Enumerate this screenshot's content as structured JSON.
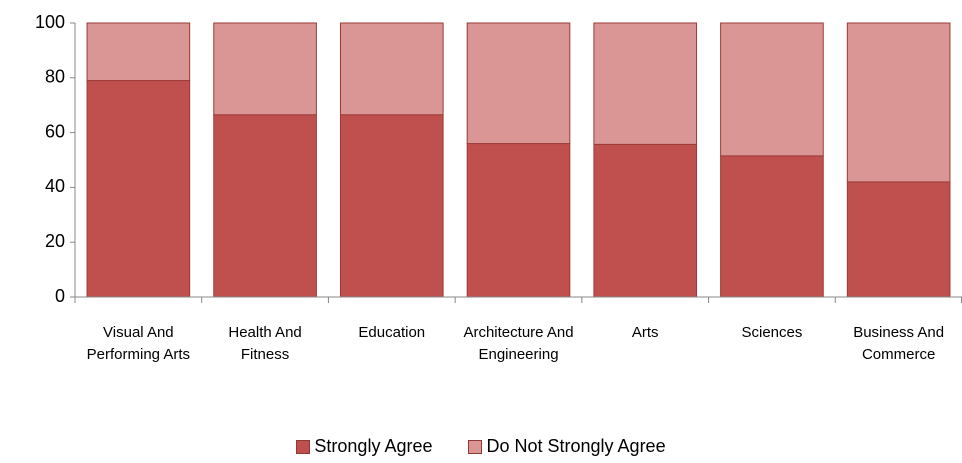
{
  "chart_data": {
    "type": "bar",
    "stacked": true,
    "categories": [
      "Visual And Performing Arts",
      "Health And Fitness",
      "Education",
      "Architecture And Engineering",
      "Arts",
      "Sciences",
      "Business And Commerce"
    ],
    "series": [
      {
        "name": "Strongly Agree",
        "color": "#c0504d",
        "values": [
          79,
          66.5,
          66.5,
          56,
          55.7,
          51.5,
          42
        ]
      },
      {
        "name": "Do Not Strongly Agree",
        "color": "#d99694",
        "values": [
          21,
          33.5,
          33.5,
          44,
          44.3,
          48.5,
          58
        ]
      }
    ],
    "ylim": [
      0,
      100
    ],
    "yticks": [
      0,
      20,
      40,
      60,
      80,
      100
    ],
    "grid": false,
    "legend": "bottom"
  }
}
